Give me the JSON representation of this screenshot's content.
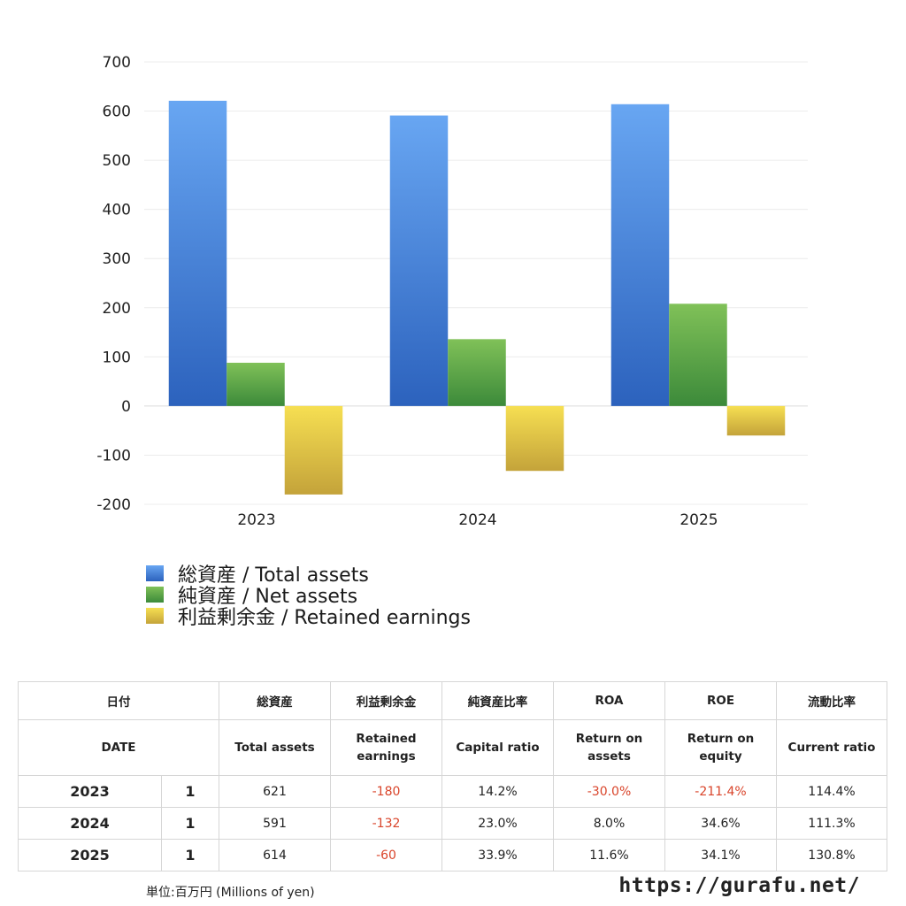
{
  "chart_data": {
    "type": "bar",
    "categories": [
      "2023",
      "2024",
      "2025"
    ],
    "series": [
      {
        "name": "総資産 / Total assets",
        "values": [
          621,
          591,
          614
        ],
        "color_top": "#68a6f2",
        "color_bottom": "#2c62bd"
      },
      {
        "name": "純資産 / Net assets",
        "values": [
          88,
          136,
          208
        ],
        "color_top": "#80c158",
        "color_bottom": "#3c8a3a"
      },
      {
        "name": "利益剰余金 / Retained earnings",
        "values": [
          -180,
          -132,
          -60
        ],
        "color_top": "#f6df52",
        "color_bottom": "#c4a33a"
      }
    ],
    "ylim": [
      -200,
      700
    ],
    "yticks": [
      "-200",
      "-100",
      "0",
      "100",
      "200",
      "300",
      "400",
      "500",
      "600",
      "700"
    ],
    "grid": true,
    "legend": "bottom-left"
  },
  "table": {
    "headers_ja": [
      "日付",
      "総資産",
      "利益剰余金",
      "純資産比率",
      "ROA",
      "ROE",
      "流動比率"
    ],
    "headers_en": [
      "DATE",
      "Total assets",
      "Retained earnings",
      "Capital ratio",
      "Return on assets",
      "Return on equity",
      "Current ratio"
    ],
    "rows": [
      {
        "year": "2023",
        "months": "1",
        "total_assets": "621",
        "retained": "-180",
        "capital_ratio": "14.2%",
        "roa": "-30.0%",
        "roe": "-211.4%",
        "current_ratio": "114.4%"
      },
      {
        "year": "2024",
        "months": "1",
        "total_assets": "591",
        "retained": "-132",
        "capital_ratio": "23.0%",
        "roa": "8.0%",
        "roe": "34.6%",
        "current_ratio": "111.3%"
      },
      {
        "year": "2025",
        "months": "1",
        "total_assets": "614",
        "retained": "-60",
        "capital_ratio": "33.9%",
        "roa": "11.6%",
        "roe": "34.1%",
        "current_ratio": "130.8%"
      }
    ]
  },
  "footer": {
    "unit": "単位:百万円 (Millions of yen)",
    "site": "https://gurafu.net/"
  }
}
